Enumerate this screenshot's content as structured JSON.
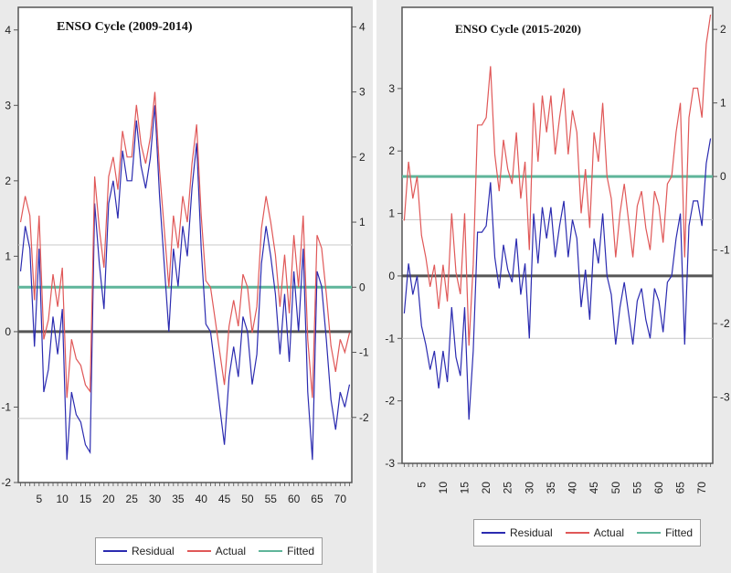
{
  "chart_data": [
    {
      "type": "line",
      "title": "ENSO Cycle (2009-2014)",
      "x_ticks": [
        5,
        10,
        15,
        20,
        25,
        30,
        35,
        40,
        45,
        50,
        55,
        60,
        65,
        70
      ],
      "left_axis": {
        "ylim": [
          -2,
          4.3
        ],
        "ticks": [
          -2,
          -1,
          0,
          1,
          2,
          3,
          4
        ]
      },
      "right_axis": {
        "ylim": [
          -3,
          4.3
        ],
        "ticks": [
          -2,
          -1,
          0,
          1,
          2,
          3,
          4
        ]
      },
      "reference_lines": {
        "residual_zero": 0,
        "residual_band": [
          -1.15,
          1.15
        ],
        "fitted": 0
      },
      "series": [
        {
          "name": "Residual",
          "axis": "left",
          "color": "#2b2bb0",
          "values": [
            0.8,
            1.4,
            1.1,
            -0.2,
            1.1,
            -0.8,
            -0.5,
            0.2,
            -0.3,
            0.3,
            -1.7,
            -0.8,
            -1.1,
            -1.2,
            -1.5,
            -1.6,
            1.7,
            0.9,
            0.3,
            1.7,
            2.0,
            1.5,
            2.4,
            2.0,
            2.0,
            2.8,
            2.2,
            1.9,
            2.3,
            3.0,
            1.8,
            0.9,
            0.0,
            1.1,
            0.6,
            1.4,
            1.0,
            1.9,
            2.5,
            1.1,
            0.1,
            0.0,
            -0.5,
            -1.0,
            -1.5,
            -0.6,
            -0.2,
            -0.6,
            0.2,
            0.0,
            -0.7,
            -0.3,
            0.9,
            1.4,
            1.0,
            0.5,
            -0.3,
            0.5,
            -0.4,
            0.8,
            0.0,
            1.1,
            -0.8,
            -1.7,
            0.8,
            0.6,
            -0.1,
            -0.9,
            -1.3,
            -0.8,
            -1.0,
            -0.7
          ]
        },
        {
          "name": "Actual",
          "axis": "right",
          "color": "#e05858",
          "values": [
            1.0,
            1.4,
            1.1,
            -0.2,
            1.1,
            -0.8,
            -0.5,
            0.2,
            -0.3,
            0.3,
            -1.7,
            -0.8,
            -1.1,
            -1.2,
            -1.5,
            -1.6,
            1.7,
            0.9,
            0.3,
            1.7,
            2.0,
            1.5,
            2.4,
            2.0,
            2.0,
            2.8,
            2.2,
            1.9,
            2.3,
            3.0,
            1.8,
            0.9,
            0.0,
            1.1,
            0.6,
            1.4,
            1.0,
            1.9,
            2.5,
            1.1,
            0.1,
            0.0,
            -0.5,
            -1.0,
            -1.5,
            -0.6,
            -0.2,
            -0.6,
            0.2,
            0.0,
            -0.7,
            -0.3,
            0.9,
            1.4,
            1.0,
            0.5,
            -0.3,
            0.5,
            -0.4,
            0.8,
            0.0,
            1.1,
            -0.8,
            -1.7,
            0.8,
            0.6,
            -0.1,
            -0.9,
            -1.3,
            -0.8,
            -1.0,
            -0.7
          ]
        },
        {
          "name": "Fitted",
          "axis": "right",
          "color": "#5fb59a",
          "values": [
            0,
            0
          ]
        }
      ]
    },
    {
      "type": "line",
      "title": "ENSO Cycle (2015-2020)",
      "x_ticks": [
        5,
        10,
        15,
        20,
        25,
        30,
        35,
        40,
        45,
        50,
        55,
        60,
        65,
        70
      ],
      "left_axis": {
        "ylim": [
          -3,
          4.3
        ],
        "ticks": [
          -3,
          -2,
          -1,
          0,
          1,
          2,
          3
        ]
      },
      "right_axis": {
        "ylim": [
          -3.9,
          2.3
        ],
        "ticks": [
          -3,
          -2,
          -1,
          0,
          1,
          2
        ]
      },
      "reference_lines": {
        "residual_zero": 0,
        "residual_band": [
          -1.0,
          0.9
        ],
        "fitted": 0
      },
      "series": [
        {
          "name": "Residual",
          "axis": "left",
          "color": "#2b2bb0",
          "values": [
            -0.6,
            0.2,
            -0.3,
            0.0,
            -0.8,
            -1.1,
            -1.5,
            -1.2,
            -1.8,
            -1.2,
            -1.7,
            -0.5,
            -1.3,
            -1.6,
            -0.5,
            -2.3,
            -1.2,
            0.7,
            0.7,
            0.8,
            1.5,
            0.3,
            -0.2,
            0.5,
            0.1,
            -0.1,
            0.6,
            -0.3,
            0.2,
            -1.0,
            1.0,
            0.2,
            1.1,
            0.6,
            1.1,
            0.3,
            0.8,
            1.2,
            0.3,
            0.9,
            0.6,
            -0.5,
            0.1,
            -0.7,
            0.6,
            0.2,
            1.0,
            0.0,
            -0.3,
            -1.1,
            -0.5,
            -0.1,
            -0.6,
            -1.1,
            -0.4,
            -0.2,
            -0.7,
            -1.0,
            -0.2,
            -0.4,
            -0.9,
            -0.1,
            0.0,
            0.6,
            1.0,
            -1.1,
            0.8,
            1.2,
            1.2,
            0.8,
            1.8,
            2.2
          ]
        },
        {
          "name": "Actual",
          "axis": "right",
          "color": "#e05858",
          "values": [
            -0.6,
            0.2,
            -0.3,
            0.0,
            -0.8,
            -1.1,
            -1.5,
            -1.2,
            -1.8,
            -1.2,
            -1.7,
            -0.5,
            -1.3,
            -1.6,
            -0.5,
            -2.3,
            -1.2,
            0.7,
            0.7,
            0.8,
            1.5,
            0.3,
            -0.2,
            0.5,
            0.1,
            -0.1,
            0.6,
            -0.3,
            0.2,
            -1.0,
            1.0,
            0.2,
            1.1,
            0.6,
            1.1,
            0.3,
            0.8,
            1.2,
            0.3,
            0.9,
            0.6,
            -0.5,
            0.1,
            -0.7,
            0.6,
            0.2,
            1.0,
            0.0,
            -0.3,
            -1.1,
            -0.5,
            -0.1,
            -0.6,
            -1.1,
            -0.4,
            -0.2,
            -0.7,
            -1.0,
            -0.2,
            -0.4,
            -0.9,
            -0.1,
            0.0,
            0.6,
            1.0,
            -1.1,
            0.8,
            1.2,
            1.2,
            0.8,
            1.8,
            2.2
          ]
        },
        {
          "name": "Fitted",
          "axis": "right",
          "color": "#5fb59a",
          "values": [
            0,
            0
          ]
        }
      ]
    }
  ]
}
